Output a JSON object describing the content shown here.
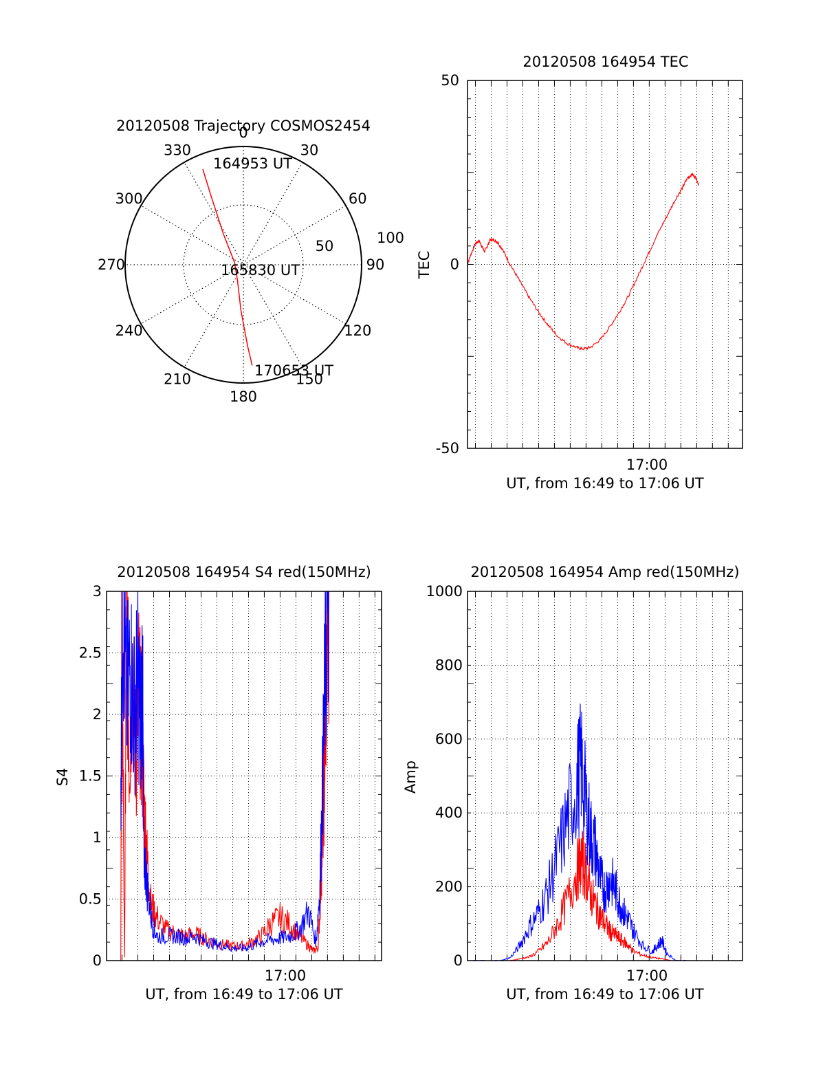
{
  "chart_data": [
    {
      "id": "trajectory",
      "type": "polar",
      "title": "20120508 Trajectory COSMOS2454",
      "angle_labels": [
        "0",
        "30",
        "60",
        "90",
        "120",
        "150",
        "180",
        "210",
        "240",
        "270",
        "300",
        "330"
      ],
      "radius_labels": [
        "50",
        "100"
      ],
      "series": [
        {
          "color": "#ff0000",
          "points": [
            {
              "az": 337,
              "el": 11
            },
            {
              "az": 335,
              "el": 31
            },
            {
              "az": 327,
              "el": 62
            },
            {
              "az": 285,
              "el": 83
            },
            {
              "az": 200,
              "el": 77
            },
            {
              "az": 183,
              "el": 55
            },
            {
              "az": 177,
              "el": 28
            },
            {
              "az": 175,
              "el": 13
            }
          ]
        }
      ],
      "annotations": [
        "164953 UT",
        "165830 UT",
        "170653 UT"
      ]
    },
    {
      "id": "tec",
      "type": "line",
      "title": "20120508 164954 TEC",
      "ylabel": "TEC",
      "xlabel": "UT, from 16:49 to 17:06 UT",
      "xtick_label": "17:00",
      "xlim": [
        16.825,
        17.115
      ],
      "ylim": [
        -50,
        50
      ],
      "yticks": [
        "50",
        "0",
        "-50"
      ],
      "series": [
        {
          "color": "#ff0000",
          "points": [
            [
              16.8247,
              0
            ],
            [
              16.829,
              3
            ],
            [
              16.833,
              5.5
            ],
            [
              16.837,
              6.5
            ],
            [
              16.84,
              5
            ],
            [
              16.843,
              3.5
            ],
            [
              16.846,
              5
            ],
            [
              16.849,
              6.7
            ],
            [
              16.853,
              6.6
            ],
            [
              16.857,
              6
            ],
            [
              16.862,
              4
            ],
            [
              16.87,
              0
            ],
            [
              16.88,
              -4.5
            ],
            [
              16.89,
              -9
            ],
            [
              16.9,
              -13
            ],
            [
              16.91,
              -16.5
            ],
            [
              16.92,
              -19.5
            ],
            [
              16.93,
              -21.5
            ],
            [
              16.94,
              -22.6
            ],
            [
              16.947,
              -23
            ],
            [
              16.955,
              -22.5
            ],
            [
              16.965,
              -20.5
            ],
            [
              16.975,
              -17
            ],
            [
              16.985,
              -13
            ],
            [
              16.995,
              -8.5
            ],
            [
              17.005,
              -3
            ],
            [
              17.015,
              2.5
            ],
            [
              17.025,
              8
            ],
            [
              17.035,
              13
            ],
            [
              17.045,
              18
            ],
            [
              17.052,
              21
            ],
            [
              17.057,
              23.5
            ],
            [
              17.062,
              24.5
            ],
            [
              17.066,
              23.5
            ],
            [
              17.069,
              21.5
            ]
          ]
        }
      ]
    },
    {
      "id": "s4",
      "type": "line",
      "title": "20120508 164954 S4 red(150MHz)",
      "ylabel": "S4",
      "xlabel": "UT, from 16:49 to 17:06 UT",
      "xtick_label": "17:00",
      "xlim": [
        16.817,
        17.107
      ],
      "ylim": [
        0,
        3
      ],
      "yticks": [
        "0",
        "0.5",
        "1",
        "1.5",
        "2",
        "2.5",
        "3"
      ],
      "series": [
        {
          "color": "#ff0000",
          "points": [
            [
              16.832,
              0
            ],
            [
              16.833,
              3
            ],
            [
              16.836,
              0
            ],
            [
              16.838,
              3
            ],
            [
              16.841,
              1.6
            ],
            [
              16.844,
              2.4
            ],
            [
              16.848,
              1.6
            ],
            [
              16.851,
              2.2
            ],
            [
              16.854,
              1.8
            ],
            [
              16.857,
              1.2
            ],
            [
              16.86,
              0.8
            ],
            [
              16.864,
              0.45
            ],
            [
              16.87,
              0.35
            ],
            [
              16.88,
              0.25
            ],
            [
              16.89,
              0.22
            ],
            [
              16.9,
              0.2
            ],
            [
              16.91,
              0.22
            ],
            [
              16.92,
              0.18
            ],
            [
              16.93,
              0.15
            ],
            [
              16.94,
              0.13
            ],
            [
              16.95,
              0.12
            ],
            [
              16.96,
              0.12
            ],
            [
              16.97,
              0.15
            ],
            [
              16.98,
              0.2
            ],
            [
              16.99,
              0.3
            ],
            [
              17.0,
              0.35
            ],
            [
              17.01,
              0.3
            ],
            [
              17.02,
              0.2
            ],
            [
              17.03,
              0.12
            ],
            [
              17.035,
              0.08
            ],
            [
              17.04,
              0.1
            ],
            [
              17.043,
              0.6
            ],
            [
              17.046,
              1.3
            ],
            [
              17.048,
              2.0
            ],
            [
              17.05,
              2.8
            ],
            [
              17.052,
              3
            ]
          ]
        },
        {
          "color": "#0000ff",
          "points": [
            [
              16.832,
              1.4
            ],
            [
              16.834,
              3
            ],
            [
              16.838,
              2.1
            ],
            [
              16.842,
              2.4
            ],
            [
              16.846,
              2.0
            ],
            [
              16.85,
              2.3
            ],
            [
              16.853,
              1.9
            ],
            [
              16.855,
              2.4
            ],
            [
              16.856,
              0.9
            ],
            [
              16.86,
              0.6
            ],
            [
              16.865,
              0.3
            ],
            [
              16.87,
              0.2
            ],
            [
              16.88,
              0.2
            ],
            [
              16.89,
              0.2
            ],
            [
              16.9,
              0.18
            ],
            [
              16.91,
              0.2
            ],
            [
              16.92,
              0.16
            ],
            [
              16.93,
              0.14
            ],
            [
              16.94,
              0.12
            ],
            [
              16.95,
              0.1
            ],
            [
              16.96,
              0.1
            ],
            [
              16.97,
              0.12
            ],
            [
              16.98,
              0.15
            ],
            [
              16.99,
              0.17
            ],
            [
              17.0,
              0.18
            ],
            [
              17.01,
              0.2
            ],
            [
              17.02,
              0.25
            ],
            [
              17.03,
              0.4
            ],
            [
              17.038,
              0.15
            ],
            [
              17.042,
              0.6
            ],
            [
              17.045,
              1.5
            ],
            [
              17.048,
              2.5
            ],
            [
              17.052,
              3
            ]
          ]
        }
      ]
    },
    {
      "id": "amp",
      "type": "line",
      "title": "20120508 164954 Amp red(150MHz)",
      "ylabel": "Amp",
      "xlabel": "UT, from 16:49 to 17:06 UT",
      "xtick_label": "17:00",
      "xlim": [
        16.825,
        17.115
      ],
      "ylim": [
        0,
        1000
      ],
      "yticks": [
        "0",
        "200",
        "400",
        "600",
        "800",
        "1000"
      ],
      "series": [
        {
          "color": "#0000ff",
          "points": [
            [
              16.825,
              0
            ],
            [
              16.86,
              0
            ],
            [
              16.87,
              8
            ],
            [
              16.88,
              40
            ],
            [
              16.89,
              90
            ],
            [
              16.9,
              130
            ],
            [
              16.91,
              190
            ],
            [
              16.92,
              280
            ],
            [
              16.93,
              380
            ],
            [
              16.94,
              480
            ],
            [
              16.945,
              530
            ],
            [
              16.95,
              420
            ],
            [
              16.955,
              340
            ],
            [
              16.96,
              300
            ],
            [
              16.965,
              220
            ],
            [
              16.97,
              190
            ],
            [
              16.975,
              220
            ],
            [
              16.98,
              200
            ],
            [
              16.985,
              160
            ],
            [
              16.99,
              130
            ],
            [
              16.995,
              110
            ],
            [
              17.0,
              80
            ],
            [
              17.01,
              40
            ],
            [
              17.02,
              25
            ],
            [
              17.025,
              40
            ],
            [
              17.03,
              55
            ],
            [
              17.035,
              20
            ],
            [
              17.045,
              0
            ],
            [
              17.06,
              0
            ]
          ]
        },
        {
          "color": "#ff0000",
          "points": [
            [
              16.87,
              0
            ],
            [
              16.88,
              5
            ],
            [
              16.89,
              10
            ],
            [
              16.9,
              25
            ],
            [
              16.91,
              50
            ],
            [
              16.92,
              100
            ],
            [
              16.93,
              160
            ],
            [
              16.94,
              240
            ],
            [
              16.945,
              270
            ],
            [
              16.95,
              240
            ],
            [
              16.955,
              180
            ],
            [
              16.96,
              150
            ],
            [
              16.965,
              120
            ],
            [
              16.97,
              100
            ],
            [
              16.975,
              80
            ],
            [
              16.98,
              70
            ],
            [
              16.985,
              60
            ],
            [
              16.99,
              50
            ],
            [
              16.995,
              40
            ],
            [
              17.0,
              25
            ],
            [
              17.01,
              15
            ],
            [
              17.02,
              8
            ],
            [
              17.03,
              5
            ],
            [
              17.04,
              0
            ]
          ]
        }
      ]
    }
  ]
}
